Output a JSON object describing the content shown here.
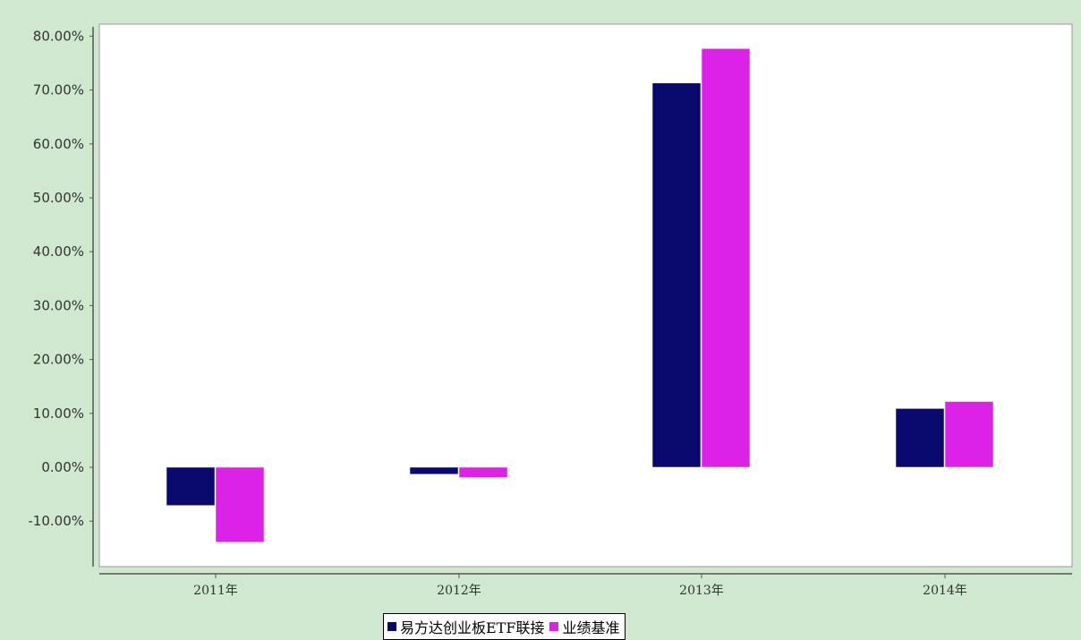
{
  "chart_data": {
    "type": "bar",
    "categories": [
      "2011年",
      "2012年",
      "2013年",
      "2014年"
    ],
    "series": [
      {
        "name": "易方达创业板ETF联接",
        "color": "#0a0a6e",
        "values": [
          -7.1,
          -1.3,
          71.3,
          10.9
        ]
      },
      {
        "name": "业绩基准",
        "color": "#dd22e8",
        "values": [
          -13.9,
          -1.9,
          77.7,
          12.2
        ]
      }
    ],
    "y_ticks": [
      "-10.00%",
      "0.00%",
      "10.00%",
      "20.00%",
      "30.00%",
      "40.00%",
      "50.00%",
      "60.00%",
      "70.00%",
      "80.00%"
    ],
    "ylim": [
      -18.5,
      82
    ],
    "grid": false,
    "legend_position": "bottom-center",
    "title": "",
    "xlabel": "",
    "ylabel": ""
  },
  "colors": {
    "background": "#cfe8cf",
    "plot_background": "#ffffff",
    "axis": "#555555"
  }
}
